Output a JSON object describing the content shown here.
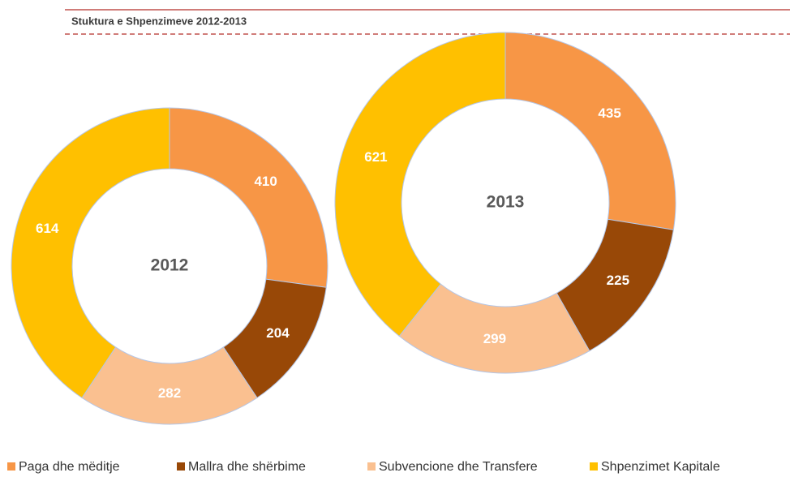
{
  "chart_data": {
    "type": "donut",
    "title": "Stuktura e  Shpenzimeve 2012-2013",
    "categories": [
      "Paga dhe mëditje",
      "Mallra dhe shërbime",
      "Subvencione dhe Transfere",
      "Shpenzimet Kapitale"
    ],
    "colors": [
      "#f79646",
      "#984807",
      "#fac090",
      "#ffc000"
    ],
    "series": [
      {
        "name": "2012",
        "values": [
          410,
          204,
          282,
          614
        ]
      },
      {
        "name": "2013",
        "values": [
          435,
          225,
          299,
          621
        ]
      }
    ],
    "legend": "bottom"
  }
}
